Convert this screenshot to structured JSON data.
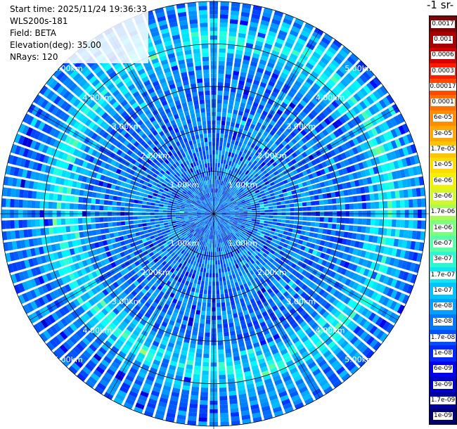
{
  "info": {
    "start_time": "Start time: 2025/11/24 19:36:33",
    "instrument": "WLS200s-181",
    "field": "Field: BETA",
    "elevation": "Elevation(deg): 35.00",
    "nrays": "NRays: 120"
  },
  "colorbar": {
    "title": "-1 sr-",
    "labels": [
      "0.0017",
      "0.001",
      "0.0006",
      "0.0003",
      "0.00017",
      "0.0001",
      "6e-05",
      "3e-05",
      "1.7e-05",
      "1e-05",
      "6e-06",
      "3e-06",
      "1.7e-06",
      "1e-06",
      "6e-07",
      "3e-07",
      "1.7e-07",
      "1e-07",
      "6e-08",
      "3e-08",
      "1.7e-08",
      "1e-08",
      "6e-09",
      "3e-09",
      "1.7e-09",
      "1e-09"
    ],
    "colors": [
      "#7f0000",
      "#a80000",
      "#d40000",
      "#ff1a00",
      "#ff4800",
      "#ff6e00",
      "#ff8c00",
      "#ffa800",
      "#ffc400",
      "#ffdc00",
      "#f2ef0a",
      "#d2f72a",
      "#a8fb56",
      "#7dff7d",
      "#56ffa8",
      "#2cf7d0",
      "#10e6f2",
      "#00c4ff",
      "#00a0ff",
      "#0078ff",
      "#0050ff",
      "#0028ff",
      "#0000f0",
      "#0000c4",
      "#00009c",
      "#00006e"
    ]
  },
  "chart_data": {
    "type": "heatmap",
    "plot": "PPI polar scan",
    "field": "BETA",
    "elevation_deg": 35.0,
    "n_rays": 120,
    "range_rings_km": [
      1.0,
      2.0,
      3.0,
      4.0,
      5.0
    ],
    "range_labels": [
      "1.00km",
      "2.00km",
      "3.00km",
      "4.00km",
      "5.00km"
    ],
    "max_range_km": 5.0,
    "colorscale": "jet",
    "color_range": [
      1e-09,
      0.0017
    ],
    "background_beta": 3e-08,
    "enhanced_ring": {
      "range_km": [
        3.2,
        4.6
      ],
      "beta": 1.7e-07,
      "peak_beta": 3e-07
    }
  }
}
